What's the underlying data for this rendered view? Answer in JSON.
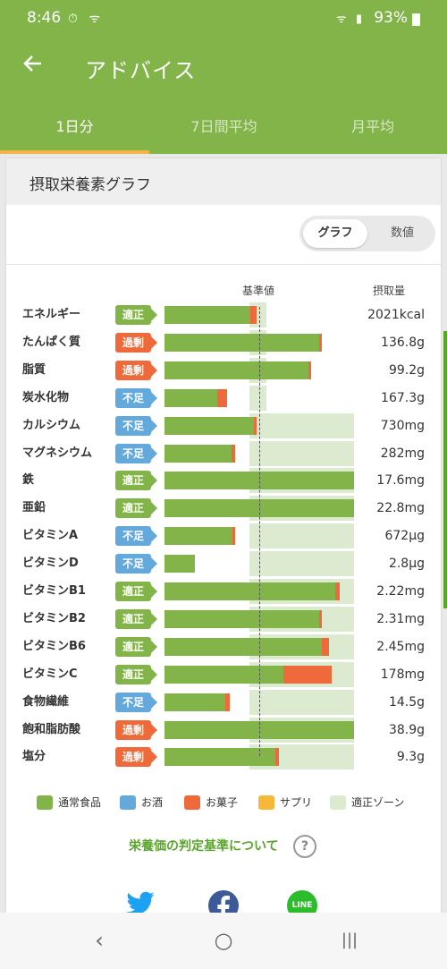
{
  "status": {
    "time": "8:46",
    "battery": "93%",
    "left_icons": "⏱ ᯤ",
    "right_icons": "ᯤ ▮"
  },
  "header": {
    "title": "アドバイス"
  },
  "tabs": [
    {
      "label": "1日分",
      "active": true
    },
    {
      "label": "7日間平均",
      "active": false
    },
    {
      "label": "月平均",
      "active": false
    }
  ],
  "card": {
    "title": "摂取栄養素グラフ",
    "toggle": {
      "selected": "グラフ",
      "other": "数値"
    },
    "col_standard": "基準値",
    "col_intake": "摂取量"
  },
  "chart_data": {
    "type": "bar",
    "categories": [
      "エネルギー",
      "たんぱく質",
      "脂質",
      "炭水化物",
      "カルシウム",
      "マグネシウム",
      "鉄",
      "亜鉛",
      "ビタミンA",
      "ビタミンD",
      "ビタミンB1",
      "ビタミンB2",
      "ビタミンB6",
      "ビタミンC",
      "食物繊維",
      "飽和脂肪酸",
      "塩分"
    ],
    "judgements": [
      "適正",
      "過剰",
      "過剰",
      "不足",
      "不足",
      "不足",
      "適正",
      "適正",
      "不足",
      "不足",
      "適正",
      "適正",
      "適正",
      "適正",
      "不足",
      "過剰",
      "過剰"
    ],
    "judgement_kind": [
      "ok",
      "over",
      "over",
      "under",
      "under",
      "under",
      "ok",
      "ok",
      "under",
      "under",
      "ok",
      "ok",
      "ok",
      "ok",
      "under",
      "over",
      "over"
    ],
    "values_text": [
      "2021kcal",
      "136.8g",
      "99.2g",
      "167.3g",
      "730mg",
      "282mg",
      "17.6mg",
      "22.8mg",
      "672µg",
      "2.8µg",
      "2.22mg",
      "2.31mg",
      "2.45mg",
      "178mg",
      "14.5g",
      "38.9g",
      "9.3g"
    ],
    "series": [
      {
        "name": "通常食品",
        "values": [
          0.91,
          1.63,
          1.52,
          0.56,
          0.94,
          0.71,
          2.0,
          2.0,
          0.72,
          0.32,
          1.8,
          1.63,
          1.66,
          1.25,
          0.64,
          2.0,
          1.17
        ]
      },
      {
        "name": "お菓子",
        "values": [
          0.06,
          0.01,
          0.03,
          0.1,
          0.02,
          0.04,
          0.0,
          0.0,
          0.01,
          0.0,
          0.05,
          0.02,
          0.08,
          0.51,
          0.05,
          0.0,
          0.04
        ]
      }
    ],
    "zone": {
      "wide": [
        0.9,
        2.0
      ],
      "narrow": [
        0.9,
        1.08
      ]
    },
    "zone_type": [
      "narrow",
      "narrow",
      "narrow",
      "narrow",
      "wide",
      "wide",
      "wide",
      "wide",
      "wide",
      "wide",
      "wide",
      "wide",
      "wide",
      "wide",
      "wide",
      "wide",
      "wide"
    ],
    "standard": 1.0,
    "legend": [
      {
        "name": "通常食品",
        "color": "#82b44a"
      },
      {
        "name": "お酒",
        "color": "#64a9dc"
      },
      {
        "name": "お菓子",
        "color": "#ee6a3a"
      },
      {
        "name": "サプリ",
        "color": "#f6b83a"
      },
      {
        "name": "適正ゾーン",
        "color": "#dcebd0"
      }
    ]
  },
  "link_text": "栄養価の判定基準について",
  "help_icon_glyph": "?",
  "share": {
    "line_label": "LINE"
  },
  "nav": {
    "back": "‹",
    "home": "○",
    "recent": "|||"
  }
}
